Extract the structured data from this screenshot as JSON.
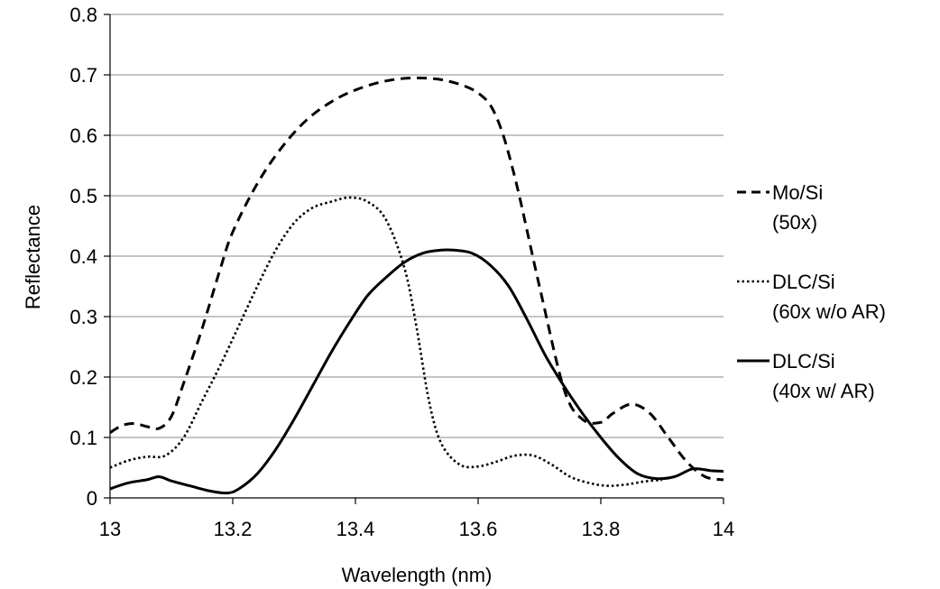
{
  "chart_data": {
    "type": "line",
    "title": "",
    "xlabel": "Wavelength (nm)",
    "ylabel": "Reflectance",
    "xlim": [
      13,
      14
    ],
    "ylim": [
      0,
      0.8
    ],
    "xticks": [
      "13",
      "13.2",
      "13.4",
      "13.6",
      "13.8",
      "14"
    ],
    "yticks": [
      "0",
      "0.1",
      "0.2",
      "0.3",
      "0.4",
      "0.5",
      "0.6",
      "0.7",
      "0.8"
    ],
    "grid": "horizontal",
    "legend_position": "right",
    "series": [
      {
        "name_line1": "Mo/Si",
        "name_line2": "(50x)",
        "style": "dashed",
        "color": "#000000",
        "x": [
          13.0,
          13.02,
          13.04,
          13.06,
          13.08,
          13.1,
          13.12,
          13.15,
          13.18,
          13.2,
          13.24,
          13.28,
          13.32,
          13.36,
          13.4,
          13.45,
          13.5,
          13.55,
          13.6,
          13.63,
          13.66,
          13.7,
          13.74,
          13.77,
          13.8,
          13.82,
          13.85,
          13.88,
          13.91,
          13.94,
          13.97,
          14.0
        ],
        "y": [
          0.108,
          0.12,
          0.123,
          0.118,
          0.115,
          0.135,
          0.19,
          0.28,
          0.38,
          0.44,
          0.52,
          0.58,
          0.625,
          0.655,
          0.675,
          0.69,
          0.695,
          0.69,
          0.67,
          0.63,
          0.53,
          0.35,
          0.18,
          0.13,
          0.125,
          0.14,
          0.155,
          0.14,
          0.1,
          0.06,
          0.035,
          0.03
        ]
      },
      {
        "name_line1": "DLC/Si",
        "name_line2": "(60x w/o AR)",
        "style": "dotted",
        "color": "#000000",
        "x": [
          13.0,
          13.03,
          13.06,
          13.09,
          13.12,
          13.15,
          13.18,
          13.21,
          13.24,
          13.27,
          13.3,
          13.33,
          13.36,
          13.39,
          13.42,
          13.45,
          13.48,
          13.5,
          13.52,
          13.54,
          13.57,
          13.6,
          13.63,
          13.66,
          13.69,
          13.72,
          13.75,
          13.78,
          13.81,
          13.84,
          13.87,
          13.9
        ],
        "y": [
          0.05,
          0.062,
          0.068,
          0.07,
          0.1,
          0.16,
          0.22,
          0.285,
          0.35,
          0.41,
          0.455,
          0.48,
          0.49,
          0.497,
          0.49,
          0.46,
          0.38,
          0.28,
          0.16,
          0.09,
          0.055,
          0.052,
          0.06,
          0.07,
          0.07,
          0.055,
          0.035,
          0.025,
          0.02,
          0.022,
          0.027,
          0.03
        ]
      },
      {
        "name_line1": "DLC/Si",
        "name_line2": "(40x w/ AR)",
        "style": "solid",
        "color": "#000000",
        "x": [
          13.0,
          13.03,
          13.06,
          13.08,
          13.1,
          13.13,
          13.16,
          13.19,
          13.21,
          13.24,
          13.27,
          13.3,
          13.33,
          13.36,
          13.39,
          13.42,
          13.45,
          13.48,
          13.51,
          13.54,
          13.56,
          13.59,
          13.62,
          13.65,
          13.68,
          13.71,
          13.74,
          13.77,
          13.8,
          13.83,
          13.86,
          13.89,
          13.92,
          13.95,
          13.98,
          14.0
        ],
        "y": [
          0.015,
          0.025,
          0.03,
          0.035,
          0.028,
          0.02,
          0.012,
          0.008,
          0.015,
          0.04,
          0.08,
          0.13,
          0.185,
          0.24,
          0.29,
          0.335,
          0.365,
          0.39,
          0.405,
          0.41,
          0.41,
          0.405,
          0.385,
          0.35,
          0.295,
          0.235,
          0.185,
          0.14,
          0.1,
          0.065,
          0.04,
          0.032,
          0.035,
          0.048,
          0.045,
          0.044
        ]
      }
    ]
  }
}
